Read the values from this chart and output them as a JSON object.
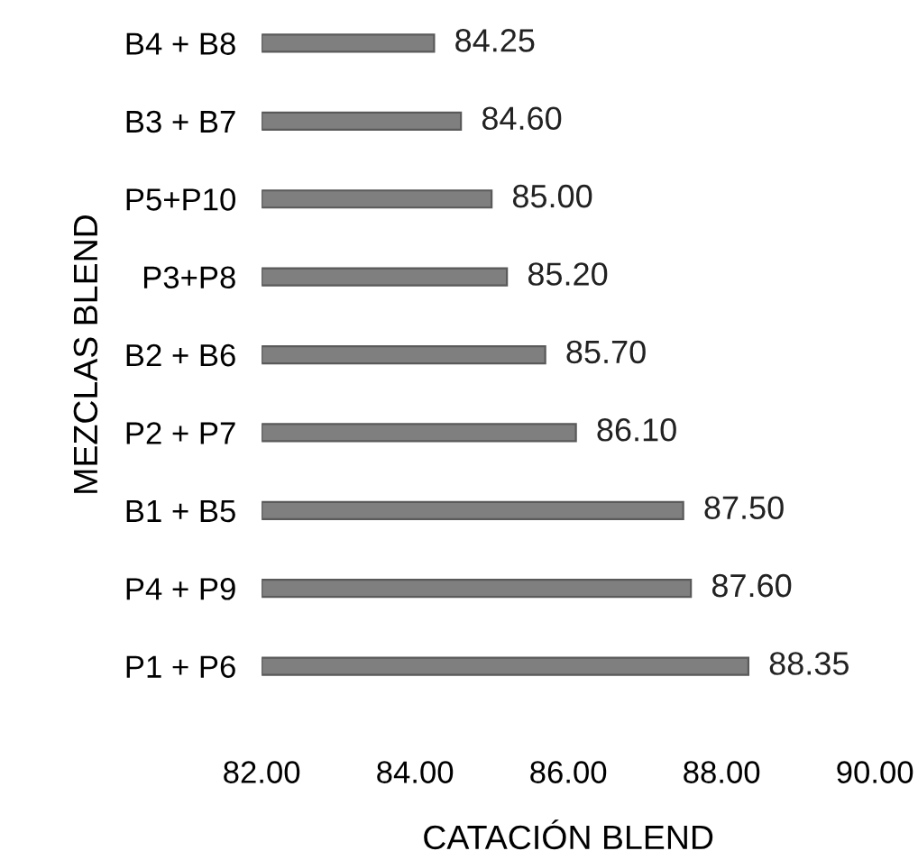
{
  "chart_data": {
    "type": "bar",
    "orientation": "horizontal",
    "categories": [
      "B4 + B8",
      "B3 + B7",
      "P5+P10",
      "P3+P8",
      "B2 + B6",
      "P2 + P7",
      "B1 + B5",
      "P4 + P9",
      "P1 + P6"
    ],
    "values": [
      84.25,
      84.6,
      85.0,
      85.2,
      85.7,
      86.1,
      87.5,
      87.6,
      88.35
    ],
    "value_labels": [
      "84.25",
      "84.60",
      "85.00",
      "85.20",
      "85.70",
      "86.10",
      "87.50",
      "87.60",
      "88.35"
    ],
    "color": "#7f7f7f",
    "xlabel": "CATACIÓN BLEND",
    "ylabel": "MEZCLAS BLEND",
    "xlim": [
      82,
      90
    ],
    "xticks": [
      {
        "value": 82,
        "label": "82.00"
      },
      {
        "value": 84,
        "label": "84.00"
      },
      {
        "value": 86,
        "label": "86.00"
      },
      {
        "value": 88,
        "label": "88.00"
      },
      {
        "value": 90,
        "label": "90.00"
      }
    ],
    "grid": false,
    "legend": false
  }
}
